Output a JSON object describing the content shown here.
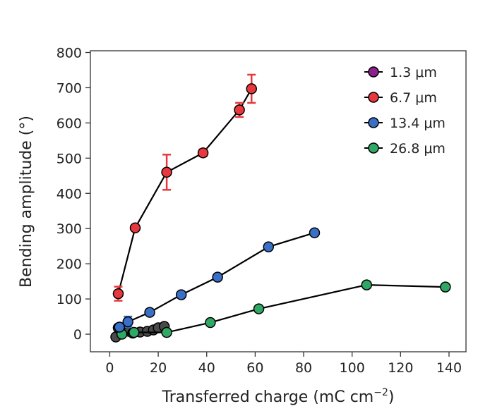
{
  "chart_data": {
    "type": "scatter",
    "title": "",
    "xlabel": "Transferred charge (mC cm",
    "xlabel_sup": "−2",
    "xlabel_close": ")",
    "ylabel": "Bending amplitude (°)",
    "xlim": [
      -8,
      147
    ],
    "ylim": [
      -50,
      805
    ],
    "xticks": [
      0,
      20,
      40,
      60,
      80,
      100,
      120,
      140
    ],
    "yticks": [
      0,
      100,
      200,
      300,
      400,
      500,
      600,
      700,
      800
    ],
    "grid": false,
    "legend_position": "top-right",
    "series": [
      {
        "name": "1.3 μm",
        "color": "#8e1f8e",
        "line_color": "#000000",
        "x": [
          2.5,
          3.5,
          5,
          8,
          9.5,
          12.5,
          15.5,
          18,
          20,
          22.5
        ],
        "y": [
          -8,
          18,
          2,
          8,
          3,
          6,
          8,
          12,
          18,
          22
        ],
        "points_color": "#4a4a4a",
        "error": null
      },
      {
        "name": "6.7 μm",
        "color": "#e8383d",
        "line_color": "#000000",
        "x": [
          3.5,
          10.5,
          23.5,
          38.5,
          53.5,
          58.5
        ],
        "y": [
          115,
          302,
          460,
          515,
          637,
          697
        ],
        "error": [
          20,
          0,
          50,
          10,
          20,
          40
        ],
        "error_color": "#e8383d"
      },
      {
        "name": "13.4 μm",
        "color": "#3a6fc8",
        "line_color": "#000000",
        "x": [
          4,
          7.5,
          16.5,
          29.5,
          44.5,
          65.5,
          84.5
        ],
        "y": [
          20,
          35,
          62,
          112,
          162,
          248,
          288
        ],
        "error": [
          0,
          15,
          0,
          0,
          0,
          0,
          0
        ],
        "error_color": "#3a6fc8"
      },
      {
        "name": "26.8 μm",
        "color": "#2fa865",
        "line_color": "#000000",
        "x": [
          5,
          10,
          23.5,
          41.5,
          61.5,
          106,
          138.5
        ],
        "y": [
          0,
          5,
          5,
          33,
          72,
          140,
          134
        ],
        "error": null
      }
    ]
  }
}
